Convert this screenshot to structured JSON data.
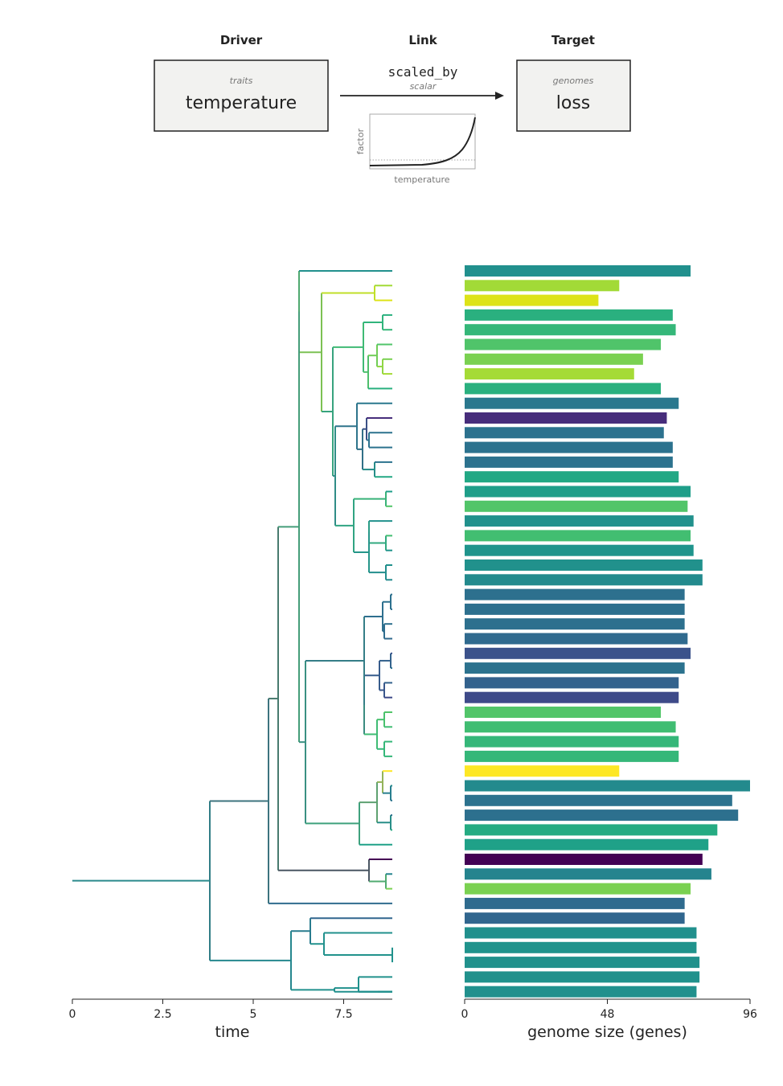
{
  "diagram": {
    "headers": {
      "driver": "Driver",
      "link": "Link",
      "target": "Target"
    },
    "driver_box": {
      "category": "traits",
      "name": "temperature"
    },
    "link": {
      "function": "scaled_by",
      "kind": "scalar",
      "inset_ylabel": "factor",
      "inset_xlabel": "temperature"
    },
    "target_box": {
      "category": "genomes",
      "name": "loss"
    }
  },
  "chart_data": [
    {
      "type": "tree",
      "xlabel": "time",
      "xticks": [
        "0",
        "2.5",
        "5",
        "7.5"
      ],
      "xlim": [
        0,
        8.9
      ],
      "tip_count": 50
    },
    {
      "type": "bar",
      "orientation": "horizontal",
      "xlabel": "genome size (genes)",
      "xticks": [
        "0",
        "48",
        "96"
      ],
      "xlim": [
        0,
        96
      ],
      "values": [
        76,
        52,
        45,
        70,
        71,
        66,
        60,
        57,
        66,
        72,
        68,
        67,
        70,
        70,
        72,
        76,
        75,
        77,
        76,
        77,
        80,
        80,
        74,
        74,
        74,
        75,
        76,
        74,
        72,
        72,
        66,
        71,
        72,
        72,
        52,
        96,
        90,
        92,
        85,
        82,
        80,
        83,
        76,
        74,
        74,
        78,
        78,
        79,
        79,
        78
      ],
      "colors": [
        "#21908d",
        "#a2da37",
        "#dde318",
        "#2ab07f",
        "#35b779",
        "#50c46a",
        "#7ad151",
        "#a5db36",
        "#2ab07f",
        "#2a788e",
        "#472d7b",
        "#2c728e",
        "#2c728e",
        "#2c728e",
        "#22a884",
        "#1f9e89",
        "#52c569",
        "#21918c",
        "#42be71",
        "#1f948c",
        "#21918c",
        "#238a8d",
        "#2d708e",
        "#2d708e",
        "#2d708e",
        "#306a8e",
        "#3b528b",
        "#2c728e",
        "#33628d",
        "#3e4a89",
        "#52c569",
        "#40bd72",
        "#35b779",
        "#35b779",
        "#fde725",
        "#238a8d",
        "#2c728e",
        "#2d708e",
        "#25ab82",
        "#1fa188",
        "#440154",
        "#25848e",
        "#7ad151",
        "#2f6b8e",
        "#31668e",
        "#21908d",
        "#20938c",
        "#21918c",
        "#21918c",
        "#21908d"
      ]
    }
  ]
}
